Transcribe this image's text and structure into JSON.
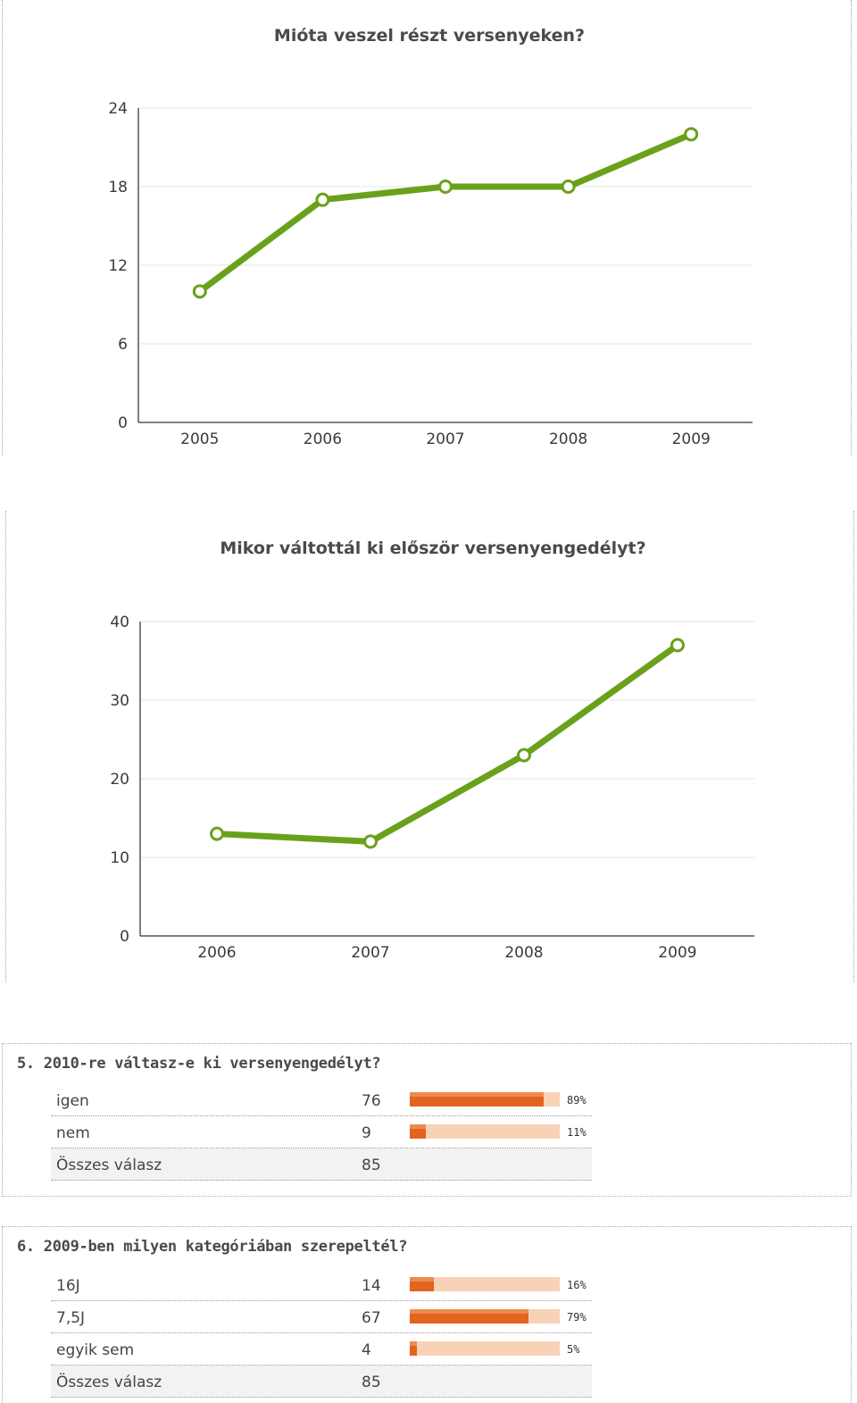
{
  "chart_data": [
    {
      "type": "line",
      "title": "Mióta veszel részt versenyeken?",
      "categories": [
        "2005",
        "2006",
        "2007",
        "2008",
        "2009"
      ],
      "values": [
        10,
        17,
        18,
        18,
        22
      ],
      "ylim": [
        0,
        24
      ],
      "yticks": [
        "0",
        "6",
        "12",
        "18",
        "24"
      ],
      "grid": true,
      "color": "#6aa11b"
    },
    {
      "type": "line",
      "title": "Mikor váltottál ki először versenyengedélyt?",
      "categories": [
        "2006",
        "2007",
        "2008",
        "2009"
      ],
      "values": [
        13,
        12,
        23,
        37
      ],
      "ylim": [
        0,
        40
      ],
      "yticks": [
        "0",
        "10",
        "20",
        "30",
        "40"
      ],
      "grid": true,
      "color": "#6aa11b"
    }
  ],
  "questions": [
    {
      "title": "5. 2010-re váltasz-e ki versenyengedélyt?",
      "rows": [
        {
          "label": "igen",
          "count": "76",
          "fraction": 0.89,
          "pct": "89%"
        },
        {
          "label": "nem",
          "count": "9",
          "fraction": 0.11,
          "pct": "11%"
        }
      ],
      "total": {
        "label": "Összes válasz",
        "count": "85"
      }
    },
    {
      "title": "6. 2009-ben milyen kategóriában szerepeltél?",
      "rows": [
        {
          "label": "16J",
          "count": "14",
          "fraction": 0.16,
          "pct": "16%"
        },
        {
          "label": "7,5J",
          "count": "67",
          "fraction": 0.79,
          "pct": "79%"
        },
        {
          "label": "egyik sem",
          "count": "4",
          "fraction": 0.05,
          "pct": "5%"
        }
      ],
      "total": {
        "label": "Összes válasz",
        "count": "85"
      }
    }
  ],
  "colors": {
    "line": "#6aa11b",
    "bar_fill": "#e2641f",
    "bar_track": "#f8d2b6"
  }
}
